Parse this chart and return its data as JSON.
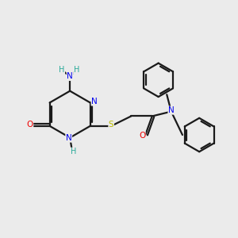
{
  "background_color": "#ebebeb",
  "bond_color": "#1a1a1a",
  "atom_colors": {
    "N": "#0000ee",
    "O": "#ee0000",
    "S": "#bbbb00",
    "H": "#2aaa99",
    "C": "#1a1a1a"
  },
  "figsize": [
    3.0,
    3.0
  ],
  "dpi": 100
}
